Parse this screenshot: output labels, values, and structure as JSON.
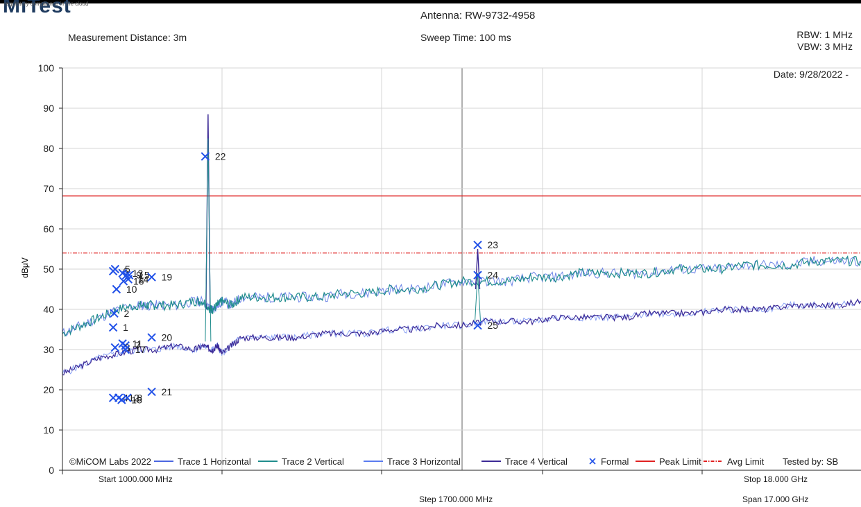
{
  "header": {
    "logo_text": "MiTest",
    "logo_tagline": "regulatory compliance in the cloud",
    "antenna": "Antenna: RW-9732-4958",
    "measurement_distance": "Measurement Distance: 3m",
    "sweep_time": "Sweep Time: 100 ms",
    "rbw": "RBW: 1 MHz",
    "vbw": "VBW: 3 MHz",
    "date": "Date: 9/28/2022 -"
  },
  "footer": {
    "start": "Start 1000.000 MHz",
    "step": "Step 1700.000 MHz",
    "stop": "Stop 18.000 GHz",
    "span": "Span 17.000 GHz",
    "copyright": "©MiCOM Labs 2022",
    "tested_by": "Tested by: SB"
  },
  "colors": {
    "trace1": "#4a66e0",
    "trace2": "#1f8c8c",
    "trace3": "#5a7bf0",
    "trace4": "#3c2a96",
    "formal": "#2050e8",
    "peak_limit": "#e02020",
    "avg_limit": "#e02020",
    "grid": "#d4d4d4"
  },
  "chart_data": {
    "type": "line",
    "ylabel": "dBμV",
    "ylim": [
      0,
      100
    ],
    "yticks": [
      "0",
      "10",
      "20",
      "30",
      "40",
      "50",
      "60",
      "70",
      "80",
      "90",
      "100"
    ],
    "xlim_mhz": [
      1000,
      18000
    ],
    "peak_limit": 68.2,
    "avg_limit": 54.0,
    "legend": [
      {
        "name": "Trace 1 Horizontal",
        "key": "trace1",
        "style": "line"
      },
      {
        "name": "Trace 2 Vertical",
        "key": "trace2",
        "style": "line"
      },
      {
        "name": "Trace 3 Horizontal",
        "key": "trace3",
        "style": "line"
      },
      {
        "name": "Trace 4 Vertical",
        "key": "trace4",
        "style": "line"
      },
      {
        "name": "Formal",
        "key": "formal",
        "style": "x"
      },
      {
        "name": "Peak Limit",
        "key": "peak_limit",
        "style": "line"
      },
      {
        "name": "Avg Limit",
        "key": "avg_limit",
        "style": "dashdot"
      }
    ],
    "series": [
      {
        "name": "Trace 2 Vertical",
        "key": "trace2",
        "x_mhz": [
          1000,
          1400,
          1800,
          2200,
          2600,
          2800,
          3000,
          3400,
          3800,
          4000,
          4150,
          4200,
          4300,
          4400,
          4600,
          4800,
          5200,
          5600,
          6000,
          6500,
          7000,
          7500,
          8000,
          8500,
          9000,
          9500,
          10000,
          10500,
          11000,
          11500,
          12000,
          12500,
          13000,
          13500,
          14000,
          14500,
          15000,
          15500,
          16000,
          16500,
          17000,
          17500,
          18000
        ],
        "y": [
          34,
          36,
          38,
          40,
          41,
          41,
          41,
          41,
          42,
          42,
          40,
          40,
          41,
          42,
          41,
          43,
          43,
          43,
          43,
          43,
          44,
          44,
          45,
          45,
          46,
          47,
          47,
          47,
          48,
          48,
          49,
          49,
          49,
          49,
          50,
          50,
          50,
          51,
          51,
          51,
          52,
          52,
          52
        ]
      },
      {
        "name": "Trace 4 Vertical",
        "key": "trace4",
        "x_mhz": [
          1000,
          1400,
          1800,
          2200,
          2600,
          3000,
          3400,
          3800,
          4000,
          4150,
          4200,
          4300,
          4400,
          4600,
          4800,
          5200,
          5600,
          6000,
          6500,
          7000,
          7500,
          8000,
          8500,
          9000,
          9500,
          10000,
          10500,
          11000,
          11500,
          12000,
          12500,
          13000,
          13500,
          14000,
          14500,
          15000,
          15500,
          16000,
          16500,
          17000,
          17500,
          18000
        ],
        "y": [
          24,
          26,
          28,
          29,
          30,
          30,
          31,
          30,
          31,
          30,
          30,
          31,
          29,
          31,
          33,
          33,
          33,
          33,
          34,
          34,
          34,
          35,
          35,
          36,
          36,
          37,
          37,
          37,
          38,
          38,
          38,
          38,
          39,
          39,
          39,
          40,
          40,
          40,
          41,
          41,
          41,
          42
        ]
      }
    ],
    "spikes": [
      {
        "x_mhz": 4100,
        "peak": 88.5,
        "base": 40
      },
      {
        "x_mhz": 9840,
        "peak": 55.0,
        "base": 45
      }
    ],
    "markers": [
      {
        "label": "5",
        "x_mhz": 2120,
        "y": 50
      },
      {
        "label": "6",
        "x_mhz": 2080,
        "y": 49.5
      },
      {
        "label": "13",
        "x_mhz": 2280,
        "y": 49
      },
      {
        "label": "15",
        "x_mhz": 2420,
        "y": 48.5
      },
      {
        "label": "9",
        "x_mhz": 2360,
        "y": 48.5
      },
      {
        "label": "10",
        "x_mhz": 2150,
        "y": 45
      },
      {
        "label": "16",
        "x_mhz": 2300,
        "y": 47
      },
      {
        "label": "14",
        "x_mhz": 2400,
        "y": 47.5
      },
      {
        "label": "19",
        "x_mhz": 2900,
        "y": 48
      },
      {
        "label": "2",
        "x_mhz": 2100,
        "y": 39
      },
      {
        "label": "1",
        "x_mhz": 2080,
        "y": 35.5
      },
      {
        "label": "11",
        "x_mhz": 2280,
        "y": 31.5
      },
      {
        "label": "7",
        "x_mhz": 2340,
        "y": 31
      },
      {
        "label": "3",
        "x_mhz": 2120,
        "y": 30.5
      },
      {
        "label": "17",
        "x_mhz": 2340,
        "y": 30
      },
      {
        "label": "20",
        "x_mhz": 2900,
        "y": 33
      },
      {
        "label": "12",
        "x_mhz": 2200,
        "y": 18
      },
      {
        "label": "4",
        "x_mhz": 2080,
        "y": 18
      },
      {
        "label": "18",
        "x_mhz": 2260,
        "y": 17.5
      },
      {
        "label": "8",
        "x_mhz": 2380,
        "y": 18
      },
      {
        "label": "21",
        "x_mhz": 2900,
        "y": 19.5
      },
      {
        "label": "22",
        "x_mhz": 4040,
        "y": 78
      },
      {
        "label": "23",
        "x_mhz": 9840,
        "y": 56
      },
      {
        "label": "24",
        "x_mhz": 9840,
        "y": 48.5
      },
      {
        "label": "25",
        "x_mhz": 9840,
        "y": 36
      }
    ]
  }
}
